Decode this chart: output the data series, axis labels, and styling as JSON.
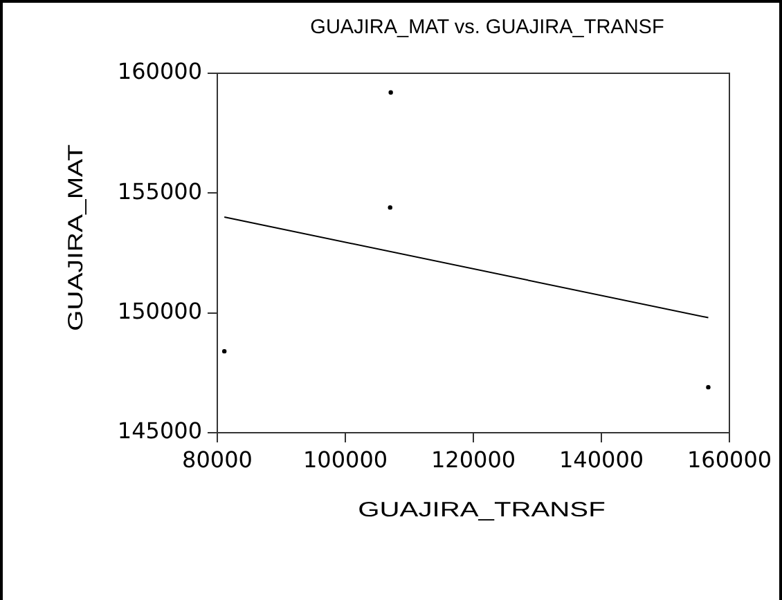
{
  "chart_data": {
    "type": "scatter",
    "title": "GUAJIRA_MAT vs. GUAJIRA_TRANSF",
    "xlabel": "GUAJIRA_TRANSF",
    "ylabel": "GUAJIRA_MAT",
    "series": [
      {
        "x": [
          81100,
          107000,
          107100,
          156700
        ],
        "values": [
          148400,
          154400,
          159200,
          146900
        ],
        "color": "#000000",
        "marker": "circle"
      },
      {
        "type": "line",
        "x": [
          81100,
          156700
        ],
        "values": [
          154000,
          149800
        ],
        "color": "#000000",
        "marker": "none",
        "line_style": "solid"
      }
    ],
    "xlim": [
      80000,
      160000
    ],
    "xticks": [
      80000,
      100000,
      120000,
      140000,
      160000
    ],
    "ylim": [
      145000,
      160000
    ],
    "yticks": [
      145000,
      150000,
      155000,
      160000
    ]
  }
}
